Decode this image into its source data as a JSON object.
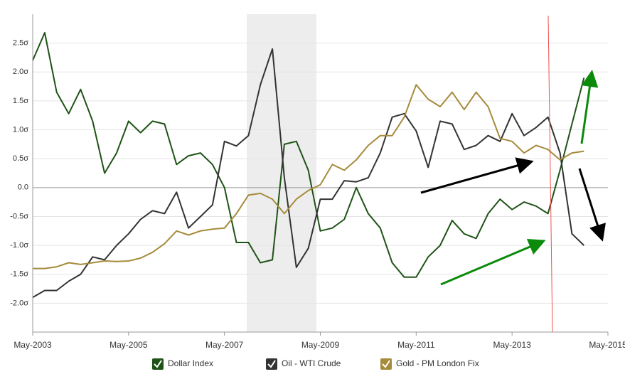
{
  "chart_data": {
    "type": "line",
    "x": [
      "2003-05",
      "2003-08",
      "2003-11",
      "2004-02",
      "2004-05",
      "2004-08",
      "2004-11",
      "2005-02",
      "2005-05",
      "2005-08",
      "2005-11",
      "2006-02",
      "2006-05",
      "2006-08",
      "2006-11",
      "2007-02",
      "2007-05",
      "2007-08",
      "2007-11",
      "2008-02",
      "2008-05",
      "2008-08",
      "2008-11",
      "2009-02",
      "2009-05",
      "2009-08",
      "2009-11",
      "2010-02",
      "2010-05",
      "2010-08",
      "2010-11",
      "2011-02",
      "2011-05",
      "2011-08",
      "2011-11",
      "2012-02",
      "2012-05",
      "2012-08",
      "2012-11",
      "2013-02",
      "2013-05",
      "2013-08",
      "2013-11",
      "2014-02",
      "2014-05",
      "2014-08",
      "2014-11"
    ],
    "series": [
      {
        "name": "Dollar Index",
        "color": "#1f5317",
        "values": [
          2.2,
          2.68,
          1.65,
          1.28,
          1.7,
          1.15,
          0.25,
          0.6,
          1.15,
          0.95,
          1.15,
          1.1,
          0.4,
          0.55,
          0.6,
          0.4,
          0.0,
          -0.95,
          -0.95,
          -1.3,
          -1.25,
          0.75,
          0.8,
          0.3,
          -0.75,
          -0.7,
          -0.55,
          0.0,
          -0.45,
          -0.7,
          -1.3,
          -1.55,
          -1.55,
          -1.2,
          -1.0,
          -0.57,
          -0.8,
          -0.88,
          -0.45,
          -0.2,
          -0.38,
          -0.25,
          -0.32,
          -0.45,
          0.3,
          1.1,
          1.9
        ]
      },
      {
        "name": "Oil - WTI Crude",
        "color": "#333333",
        "values": [
          -1.9,
          -1.78,
          -1.78,
          -1.62,
          -1.5,
          -1.2,
          -1.25,
          -1.0,
          -0.8,
          -0.55,
          -0.4,
          -0.45,
          -0.08,
          -0.7,
          -0.5,
          -0.3,
          0.8,
          0.72,
          0.9,
          1.78,
          2.4,
          0.17,
          -1.38,
          -1.05,
          -0.2,
          -0.2,
          0.12,
          0.1,
          0.17,
          0.6,
          1.22,
          1.28,
          0.98,
          0.35,
          1.15,
          1.1,
          0.66,
          0.73,
          0.9,
          0.8,
          1.28,
          0.9,
          1.04,
          1.22,
          0.6,
          -0.8,
          -1.0
        ]
      },
      {
        "name": "Gold - PM London Fix",
        "color": "#a68b3b",
        "values": [
          -1.4,
          -1.4,
          -1.37,
          -1.3,
          -1.33,
          -1.3,
          -1.27,
          -1.28,
          -1.27,
          -1.22,
          -1.12,
          -0.97,
          -0.75,
          -0.82,
          -0.75,
          -0.72,
          -0.7,
          -0.45,
          -0.13,
          -0.1,
          -0.2,
          -0.45,
          -0.2,
          -0.05,
          0.05,
          0.4,
          0.3,
          0.48,
          0.73,
          0.9,
          0.9,
          1.22,
          1.78,
          1.53,
          1.4,
          1.65,
          1.35,
          1.65,
          1.4,
          0.85,
          0.8,
          0.6,
          0.73,
          0.66,
          0.48,
          0.6,
          0.63
        ]
      }
    ],
    "xlim": [
      "2003-05",
      "2015-05"
    ],
    "xticks": [
      {
        "value": "2003-05",
        "label": "May-2003"
      },
      {
        "value": "2005-05",
        "label": "May-2005"
      },
      {
        "value": "2007-05",
        "label": "May-2007"
      },
      {
        "value": "2009-05",
        "label": "May-2009"
      },
      {
        "value": "2011-05",
        "label": "May-2011"
      },
      {
        "value": "2013-05",
        "label": "May-2013"
      },
      {
        "value": "2015-05",
        "label": "May-2015"
      }
    ],
    "ylim": [
      -2.5,
      3.0
    ],
    "yticks": [
      {
        "value": -2.0,
        "label": "-2.0σ"
      },
      {
        "value": -1.5,
        "label": "-1.5σ"
      },
      {
        "value": -1.0,
        "label": "-1.0σ"
      },
      {
        "value": -0.5,
        "label": "-0.5σ"
      },
      {
        "value": 0,
        "label": "0.0"
      },
      {
        "value": 0.5,
        "label": "0.5σ"
      },
      {
        "value": 1.0,
        "label": "1.0σ"
      },
      {
        "value": 1.5,
        "label": "1.5σ"
      },
      {
        "value": 2.0,
        "label": "2.0σ"
      },
      {
        "value": 2.5,
        "label": "2.5σ"
      }
    ],
    "grid": true,
    "legend": "bottom"
  }
}
